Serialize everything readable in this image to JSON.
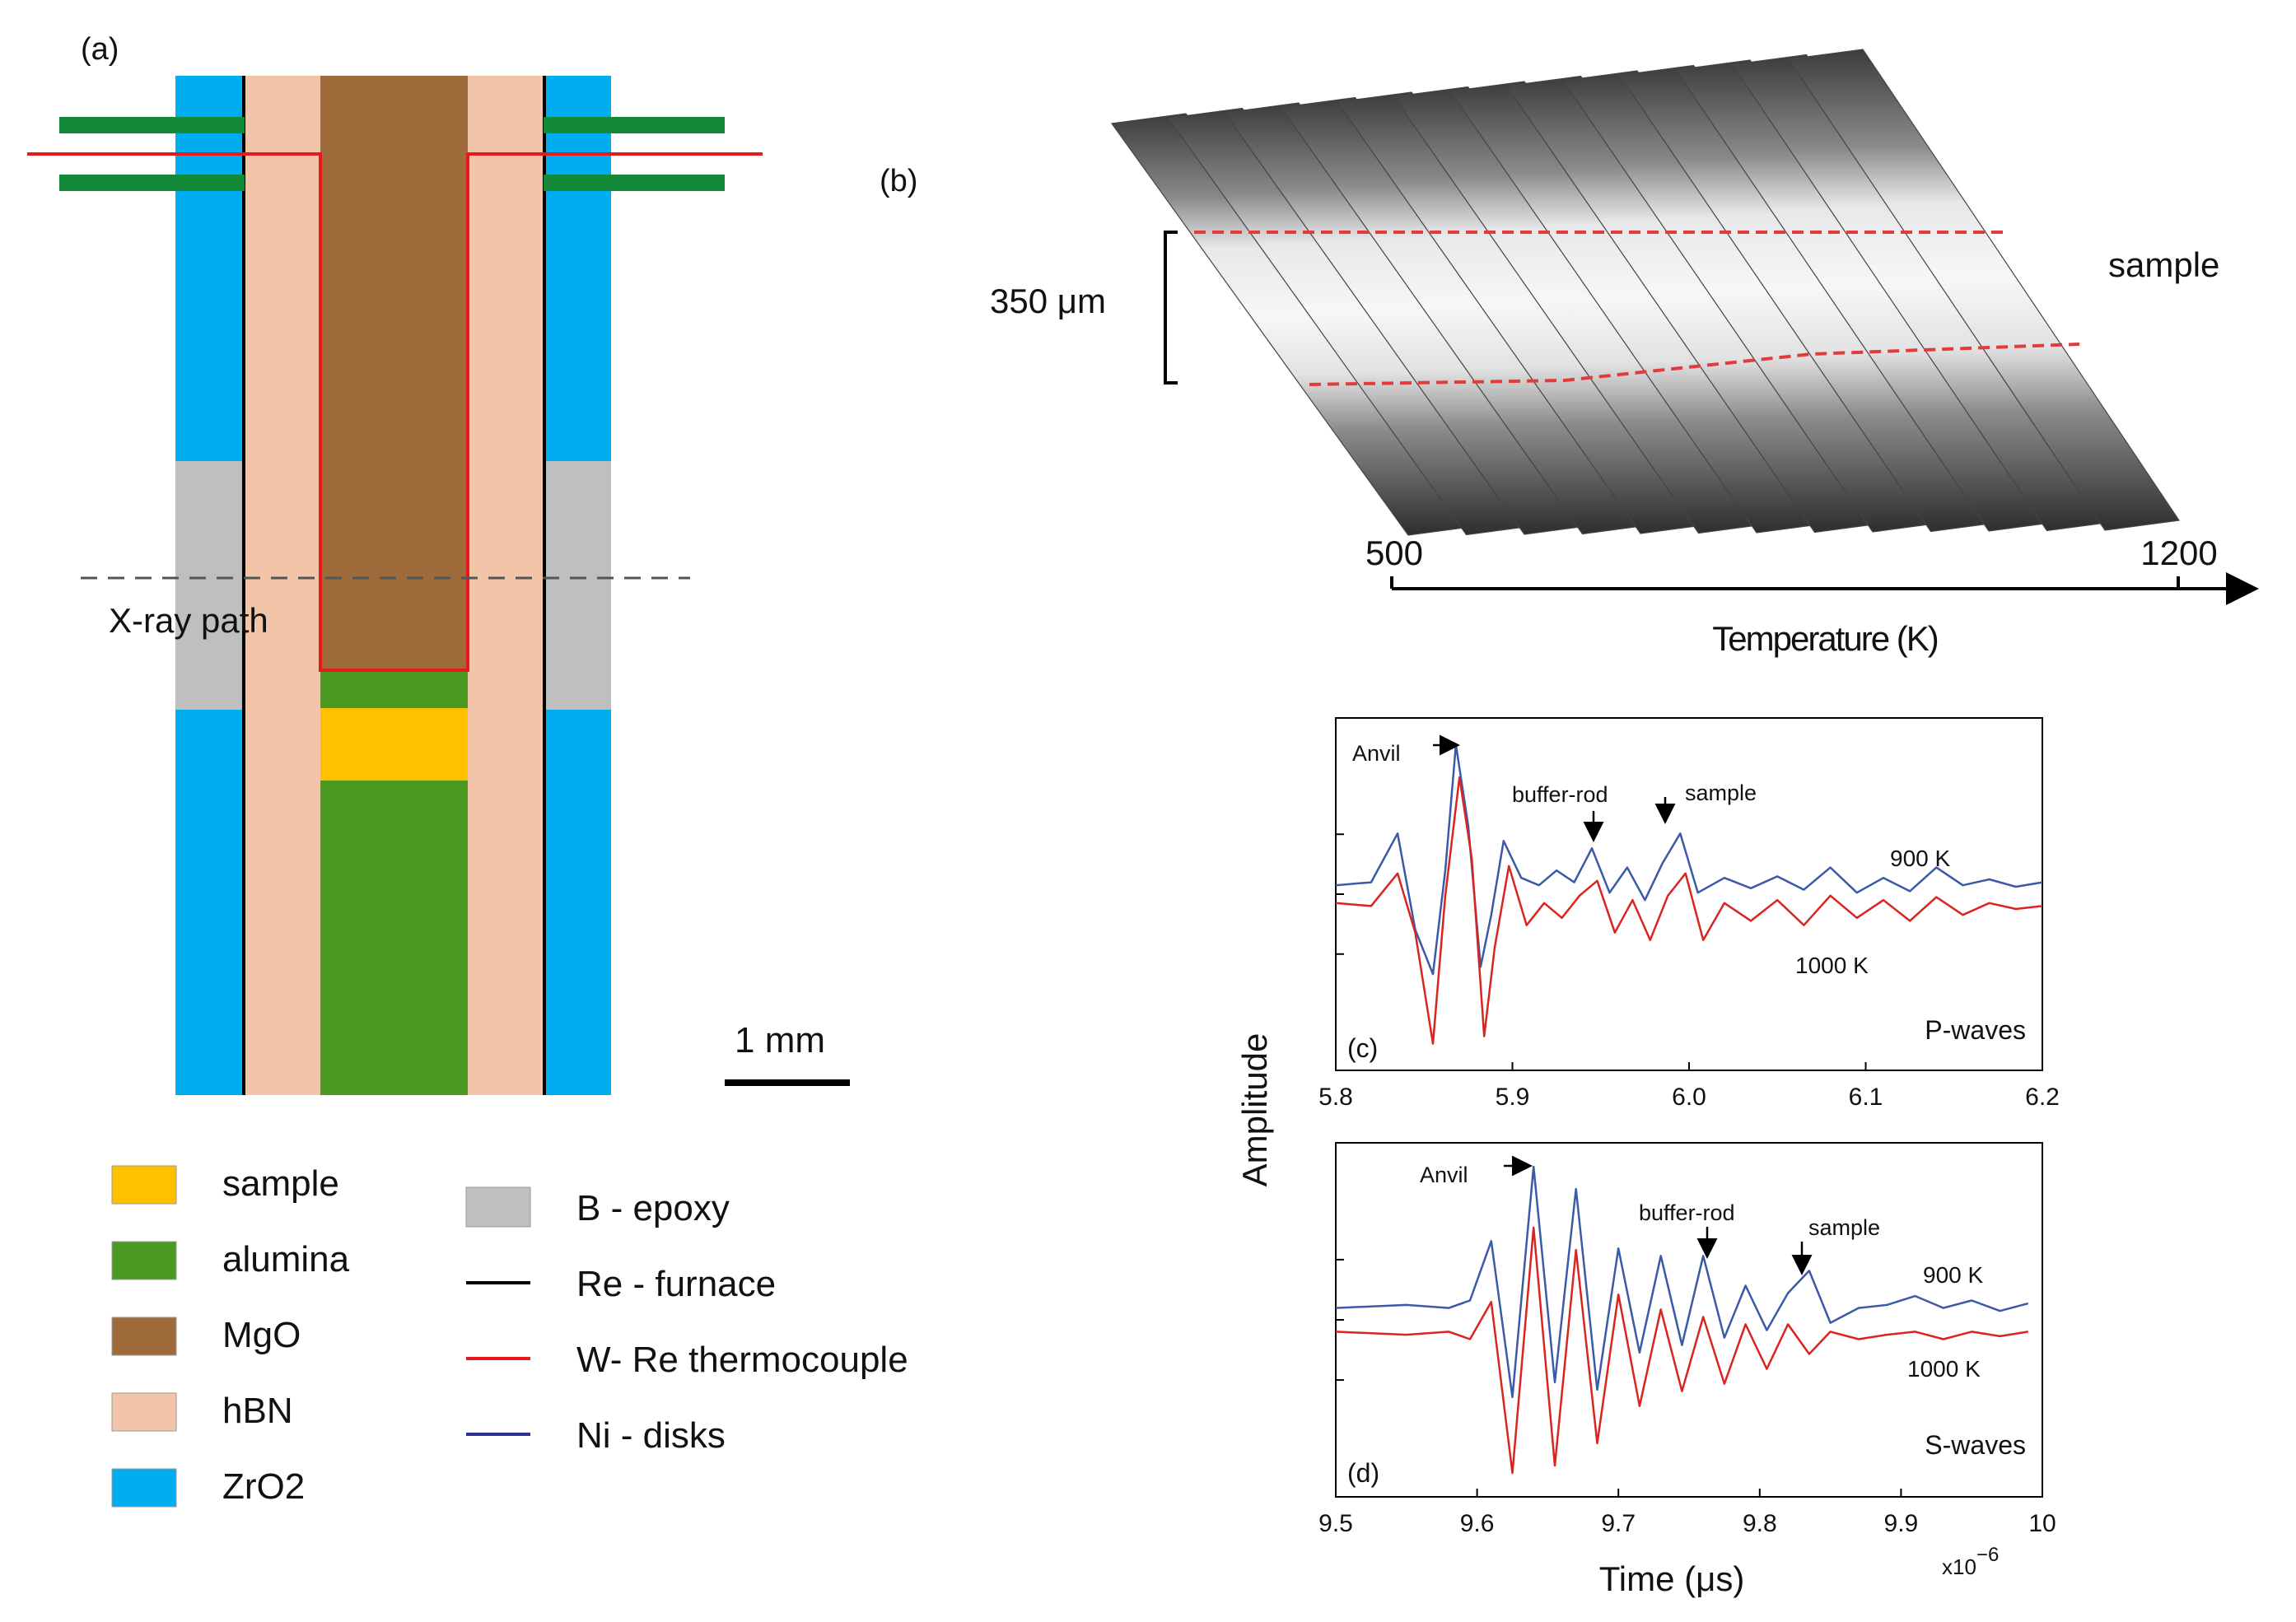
{
  "colors": {
    "sample": "#ffc000",
    "alumina": "#4a9a22",
    "mgo": "#a06b3a",
    "hbn": "#f2c4a8",
    "zro2": "#00aeef",
    "b_epoxy": "#bfbfbf",
    "re_furnace": "#000000",
    "thermocouple": "#e8191c",
    "ni_disks": "#2e3192",
    "trace_900": "#3a5aa8",
    "trace_1000": "#d9241f",
    "green_disks": "#138a3a"
  },
  "panel_a": {
    "label": "(a)",
    "xray_label": "X-ray path",
    "scale_label": "1 mm",
    "legend_left": [
      {
        "key": "sample",
        "label": "sample"
      },
      {
        "key": "alumina",
        "label": "alumina"
      },
      {
        "key": "mgo",
        "label": "MgO"
      },
      {
        "key": "hbn",
        "label": "hBN"
      },
      {
        "key": "zro2",
        "label": "ZrO2"
      }
    ],
    "legend_right": [
      {
        "key": "b_epoxy",
        "label": "B - epoxy",
        "kind": "box"
      },
      {
        "key": "re_furnace",
        "label": "Re - furnace",
        "kind": "line"
      },
      {
        "key": "thermocouple",
        "label": "W- Re thermocouple",
        "kind": "line"
      },
      {
        "key": "ni_disks",
        "label": "Ni - disks",
        "kind": "line"
      }
    ]
  },
  "panel_b": {
    "label": "(b)",
    "scale_label": "350 μm",
    "sample_label": "sample",
    "temp_start": "500",
    "temp_end": "1200",
    "axis_label": "Temperature (K)",
    "strip_count": 13
  },
  "panel_c": {
    "label": "(c)",
    "wave_label": "P-waves",
    "tag_900": "900 K",
    "tag_1000": "1000 K",
    "ann_anvil": "Anvil",
    "ann_buffer": "buffer-rod",
    "ann_sample": "sample",
    "ticks": [
      "5.8",
      "5.9",
      "6.0",
      "6.1",
      "6.2"
    ]
  },
  "panel_d": {
    "label": "(d)",
    "wave_label": "S-waves",
    "tag_900": "900 K",
    "tag_1000": "1000 K",
    "ann_anvil": "Anvil",
    "ann_buffer": "buffer-rod",
    "ann_sample": "sample",
    "ticks": [
      "9.5",
      "9.6",
      "9.7",
      "9.8",
      "9.9",
      "10"
    ],
    "exponent": "x10",
    "exponent_power": "−6"
  },
  "axes_cd": {
    "ylabel": "Amplitude",
    "xlabel": "Time (μs)"
  },
  "chart_data": [
    {
      "type": "line",
      "title": "(c) P-waves",
      "xlabel": "Time (μs)",
      "ylabel": "Amplitude",
      "xlim": [
        5.8,
        6.2
      ],
      "ylim": [
        -1,
        1
      ],
      "annotations": [
        {
          "text": "Anvil",
          "x": 5.87
        },
        {
          "text": "buffer-rod",
          "x": 5.95
        },
        {
          "text": "sample",
          "x": 5.99
        }
      ],
      "series": [
        {
          "name": "900 K",
          "offset": 0.06,
          "x": [
            5.8,
            5.82,
            5.835,
            5.845,
            5.855,
            5.862,
            5.868,
            5.875,
            5.882,
            5.888,
            5.895,
            5.905,
            5.915,
            5.925,
            5.935,
            5.945,
            5.955,
            5.965,
            5.975,
            5.985,
            5.995,
            6.005,
            6.02,
            6.035,
            6.05,
            6.065,
            6.08,
            6.095,
            6.11,
            6.125,
            6.14,
            6.155,
            6.17,
            6.185,
            6.2
          ],
          "y": [
            0.0,
            0.02,
            0.35,
            -0.3,
            -0.6,
            0.1,
            0.95,
            0.4,
            -0.55,
            -0.2,
            0.3,
            0.05,
            0.0,
            0.1,
            0.02,
            0.25,
            -0.05,
            0.12,
            -0.1,
            0.15,
            0.35,
            -0.05,
            0.05,
            -0.02,
            0.06,
            -0.03,
            0.12,
            -0.05,
            0.05,
            -0.04,
            0.12,
            0.0,
            0.04,
            -0.01,
            0.02
          ]
        },
        {
          "name": "1000 K",
          "offset": -0.06,
          "x": [
            5.8,
            5.82,
            5.835,
            5.845,
            5.855,
            5.862,
            5.87,
            5.877,
            5.884,
            5.89,
            5.898,
            5.908,
            5.918,
            5.928,
            5.938,
            5.948,
            5.958,
            5.968,
            5.978,
            5.988,
            5.998,
            6.008,
            6.02,
            6.035,
            6.05,
            6.065,
            6.08,
            6.095,
            6.11,
            6.125,
            6.14,
            6.155,
            6.17,
            6.185,
            6.2
          ],
          "y": [
            0.0,
            -0.02,
            0.2,
            -0.2,
            -0.95,
            0.05,
            0.85,
            0.3,
            -0.9,
            -0.3,
            0.25,
            -0.15,
            0.0,
            -0.1,
            0.05,
            0.15,
            -0.2,
            0.02,
            -0.25,
            0.05,
            0.2,
            -0.25,
            0.0,
            -0.12,
            0.02,
            -0.15,
            0.05,
            -0.1,
            0.02,
            -0.12,
            0.04,
            -0.08,
            0.0,
            -0.04,
            -0.02
          ]
        }
      ]
    },
    {
      "type": "line",
      "title": "(d) S-waves",
      "xlabel": "Time (μs)",
      "ylabel": "Amplitude",
      "xlim": [
        9.5,
        10.0
      ],
      "ylim": [
        -1,
        1
      ],
      "x_multiplier": "x10^-6",
      "annotations": [
        {
          "text": "Anvil",
          "x": 9.64
        },
        {
          "text": "buffer-rod",
          "x": 9.76
        },
        {
          "text": "sample",
          "x": 9.83
        }
      ],
      "series": [
        {
          "name": "900 K",
          "offset": 0.08,
          "x": [
            9.5,
            9.55,
            9.58,
            9.595,
            9.61,
            9.625,
            9.64,
            9.655,
            9.67,
            9.685,
            9.7,
            9.715,
            9.73,
            9.745,
            9.76,
            9.775,
            9.79,
            9.805,
            9.82,
            9.835,
            9.85,
            9.87,
            9.89,
            9.91,
            9.93,
            9.95,
            9.97,
            9.99
          ],
          "y": [
            0.0,
            0.02,
            0.0,
            0.05,
            0.45,
            -0.6,
            0.95,
            -0.5,
            0.8,
            -0.55,
            0.4,
            -0.3,
            0.35,
            -0.25,
            0.35,
            -0.2,
            0.15,
            -0.15,
            0.1,
            0.25,
            -0.1,
            0.0,
            0.02,
            0.08,
            0.0,
            0.05,
            -0.02,
            0.03
          ]
        },
        {
          "name": "1000 K",
          "offset": -0.08,
          "x": [
            9.5,
            9.55,
            9.58,
            9.595,
            9.61,
            9.625,
            9.64,
            9.655,
            9.67,
            9.685,
            9.7,
            9.715,
            9.73,
            9.745,
            9.76,
            9.775,
            9.79,
            9.805,
            9.82,
            9.835,
            9.85,
            9.87,
            9.89,
            9.91,
            9.93,
            9.95,
            9.97,
            9.99
          ],
          "y": [
            0.0,
            -0.02,
            0.0,
            -0.05,
            0.2,
            -0.95,
            0.7,
            -0.9,
            0.55,
            -0.75,
            0.25,
            -0.5,
            0.15,
            -0.4,
            0.1,
            -0.35,
            0.05,
            -0.25,
            0.05,
            -0.15,
            0.0,
            -0.05,
            -0.02,
            0.0,
            -0.05,
            0.0,
            -0.03,
            0.0
          ]
        }
      ]
    }
  ]
}
